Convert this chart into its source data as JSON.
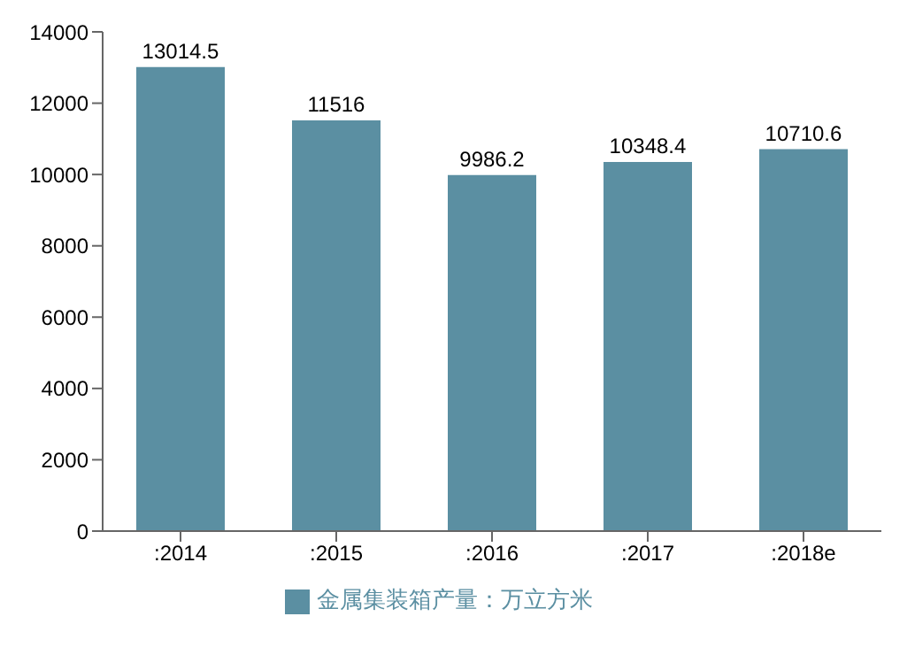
{
  "chart_data": {
    "type": "bar",
    "categories": [
      ":2014",
      ":2015",
      ":2016",
      ":2017",
      ":2018e"
    ],
    "series": [
      {
        "name": "金属集装箱产量：万立方米",
        "color": "#5b8fa2",
        "values": [
          13014.5,
          11516,
          9986.2,
          10348.4,
          10710.6
        ]
      }
    ],
    "ylim": [
      0,
      14000
    ],
    "yticks": [
      0,
      2000,
      4000,
      6000,
      8000,
      10000,
      12000,
      14000
    ],
    "data_labels": true,
    "legend": "bottom",
    "grid": false
  }
}
